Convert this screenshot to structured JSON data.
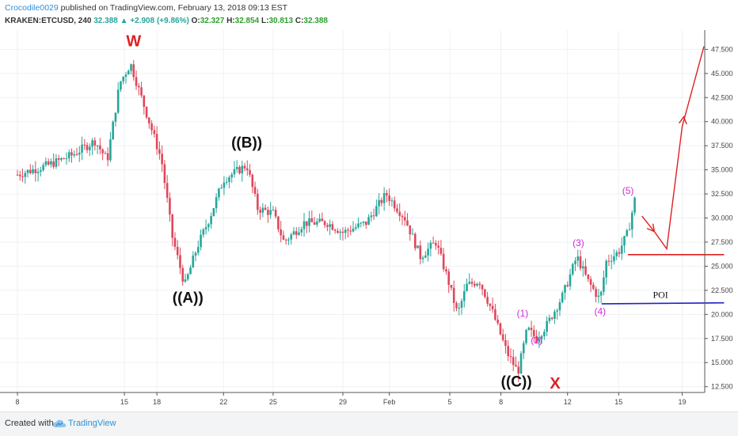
{
  "header": {
    "author": "Crocodile0029",
    "published_text": "published on TradingView.com, February 13, 2018 09:13 EST",
    "symbol_text": "KRAKEN:ETCUSD, 240",
    "last": "32.388",
    "change": "+2.908 (+9.86%)",
    "open_label": "O:",
    "open": "32.327",
    "high_label": "H:",
    "high": "32.854",
    "low_label": "L:",
    "low": "30.813",
    "close_label": "C:",
    "close": "32.388"
  },
  "footer": {
    "created_with": "Created with",
    "brand": "TradingView"
  },
  "colors": {
    "up": "#26a69a",
    "down": "#e0475a",
    "annotation_red": "#e02020",
    "wave_pink": "#d02ad8",
    "poi_blue": "#2020c8"
  },
  "chart_data": {
    "type": "candlestick",
    "symbol": "KRAKEN:ETCUSD",
    "timeframe": "240",
    "x_ticks": [
      "8",
      "15",
      "18",
      "22",
      "25",
      "29",
      "Feb",
      "5",
      "8",
      "12",
      "15",
      "19"
    ],
    "y_ticks": [
      "12.500",
      "15.000",
      "17.500",
      "20.000",
      "22.500",
      "25.000",
      "27.500",
      "30.000",
      "32.500",
      "35.000",
      "37.500",
      "40.000",
      "42.500",
      "45.000",
      "47.500"
    ],
    "ylim": [
      11.9,
      49.5
    ],
    "price_path": [
      {
        "d": 0,
        "p": 34.5
      },
      {
        "d": 2.0,
        "p": 35.5
      },
      {
        "d": 3.5,
        "p": 36.5
      },
      {
        "d": 5.0,
        "p": 38.0
      },
      {
        "d": 5.8,
        "p": 36.0
      },
      {
        "d": 6.6,
        "p": 44.0
      },
      {
        "d": 7.3,
        "p": 46.0
      },
      {
        "d": 8.1,
        "p": 42.0
      },
      {
        "d": 9.3,
        "p": 36.0
      },
      {
        "d": 10.0,
        "p": 28.0
      },
      {
        "d": 10.8,
        "p": 23.0
      },
      {
        "d": 11.6,
        "p": 27.0
      },
      {
        "d": 12.4,
        "p": 30.0
      },
      {
        "d": 13.3,
        "p": 34.0
      },
      {
        "d": 14.8,
        "p": 35.5
      },
      {
        "d": 15.5,
        "p": 31.0
      },
      {
        "d": 16.5,
        "p": 30.5
      },
      {
        "d": 17.2,
        "p": 27.5
      },
      {
        "d": 18.5,
        "p": 29.5
      },
      {
        "d": 20.0,
        "p": 29.5
      },
      {
        "d": 21.0,
        "p": 28.5
      },
      {
        "d": 22.5,
        "p": 29.5
      },
      {
        "d": 23.8,
        "p": 32.5
      },
      {
        "d": 25.0,
        "p": 30.0
      },
      {
        "d": 26.0,
        "p": 26.0
      },
      {
        "d": 27.0,
        "p": 27.5
      },
      {
        "d": 27.8,
        "p": 23.5
      },
      {
        "d": 28.4,
        "p": 20.0
      },
      {
        "d": 29.0,
        "p": 23.0
      },
      {
        "d": 29.8,
        "p": 23.5
      },
      {
        "d": 30.6,
        "p": 20.5
      },
      {
        "d": 31.6,
        "p": 16.0
      },
      {
        "d": 32.3,
        "p": 14.0
      },
      {
        "d": 32.9,
        "p": 18.5
      },
      {
        "d": 33.5,
        "p": 17.5
      },
      {
        "d": 34.2,
        "p": 19.0
      },
      {
        "d": 35.2,
        "p": 22.0
      },
      {
        "d": 36.1,
        "p": 26.0
      },
      {
        "d": 36.8,
        "p": 23.5
      },
      {
        "d": 37.6,
        "p": 21.5
      },
      {
        "d": 38.0,
        "p": 25.5
      },
      {
        "d": 38.8,
        "p": 26.5
      },
      {
        "d": 39.4,
        "p": 28.5
      },
      {
        "d": 39.9,
        "p": 32.4
      }
    ],
    "annotations": [
      {
        "label": "W",
        "d": 7.5,
        "p": 47.8,
        "color": "#e02020"
      },
      {
        "label": "((A))",
        "d": 11.0,
        "p": 21.2,
        "color": "#111111"
      },
      {
        "label": "((B))",
        "d": 14.8,
        "p": 37.3,
        "color": "#111111"
      },
      {
        "label": "((C))",
        "d": 32.2,
        "p": 12.5,
        "color": "#111111"
      },
      {
        "label": "X",
        "d": 34.7,
        "p": 12.3,
        "color": "#e02020"
      },
      {
        "label": "(1)",
        "d": 32.6,
        "p": 19.8,
        "color": "#d02ad8"
      },
      {
        "label": "(2)",
        "d": 33.5,
        "p": 17.0,
        "color": "#d02ad8"
      },
      {
        "label": "(3)",
        "d": 36.2,
        "p": 27.1,
        "color": "#d02ad8"
      },
      {
        "label": "(4)",
        "d": 37.6,
        "p": 20.0,
        "color": "#d02ad8"
      },
      {
        "label": "(5)",
        "d": 39.4,
        "p": 32.5,
        "color": "#d02ad8"
      },
      {
        "label": "POI",
        "d": 41.5,
        "p": 21.7,
        "color": "#111111"
      }
    ],
    "lines": [
      {
        "name": "resistance",
        "from": [
          39.4,
          26.2
        ],
        "to": [
          45.6,
          26.2
        ],
        "color": "#e02020"
      },
      {
        "name": "poi",
        "from": [
          37.7,
          21.1
        ],
        "to": [
          45.6,
          21.2
        ],
        "color": "#2020c8"
      }
    ],
    "projection": [
      [
        40.3,
        30.2
      ],
      [
        41.1,
        28.6
      ],
      [
        41.9,
        26.8
      ],
      [
        42.9,
        39.5
      ],
      [
        44.3,
        47.8
      ]
    ]
  }
}
